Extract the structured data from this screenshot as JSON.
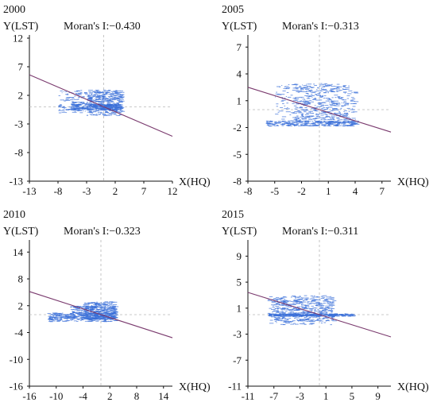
{
  "chart_data": [
    {
      "type": "scatter",
      "title": "2000",
      "ylabel": "Y(LST)",
      "xlabel": "X(HQ)",
      "moran_label": "Moran's I:",
      "moran_value": "−0.430",
      "xlim": [
        -13,
        12
      ],
      "ylim": [
        -13,
        12
      ],
      "xticks": [
        -13,
        -8,
        -3,
        2,
        7,
        12
      ],
      "yticks": [
        12,
        7,
        2,
        -3,
        -8,
        -13
      ],
      "reference_lines": {
        "x": 0,
        "y": 0
      },
      "regression": {
        "slope": -0.43,
        "intercept": 0,
        "color": "#7a3a6e"
      },
      "point_color": "#3a6fd8",
      "clusters": [
        {
          "x_range": [
            -8,
            3
          ],
          "y_range": [
            -1,
            3
          ]
        },
        {
          "x_range": [
            -3,
            3
          ],
          "y_range": [
            -1.5,
            3
          ]
        },
        {
          "x_range": [
            -6,
            3
          ],
          "y_range": [
            -0.5,
            0.5
          ]
        }
      ]
    },
    {
      "type": "scatter",
      "title": "2005",
      "ylabel": "Y(LST)",
      "xlabel": "X(HQ)",
      "moran_label": "Moran's I:",
      "moran_value": "−0.313",
      "xlim": [
        -8,
        8
      ],
      "ylim": [
        -8,
        8
      ],
      "xticks": [
        -8,
        -5,
        -2,
        1,
        4,
        7
      ],
      "yticks": [
        7,
        4,
        1,
        -2,
        -5,
        -8
      ],
      "reference_lines": {
        "x": 0,
        "y": 0
      },
      "regression": {
        "slope": -0.313,
        "intercept": 0,
        "color": "#7a3a6e"
      },
      "point_color": "#3a6fd8",
      "clusters": [
        {
          "x_range": [
            -5,
            3
          ],
          "y_range": [
            -1.5,
            3
          ]
        },
        {
          "x_range": [
            -3,
            4
          ],
          "y_range": [
            -1.5,
            2.7
          ]
        },
        {
          "x_range": [
            -6,
            4
          ],
          "y_range": [
            -1.8,
            -1.2
          ]
        }
      ]
    },
    {
      "type": "scatter",
      "title": "2010",
      "ylabel": "Y(LST)",
      "xlabel": "X(HQ)",
      "moran_label": "Moran's I:",
      "moran_value": "−0.323",
      "xlim": [
        -16,
        16
      ],
      "ylim": [
        -16,
        16
      ],
      "xticks": [
        -16,
        -10,
        -4,
        2,
        8,
        14
      ],
      "yticks": [
        14,
        8,
        2,
        -4,
        -10,
        -16
      ],
      "reference_lines": {
        "x": 0,
        "y": 0
      },
      "regression": {
        "slope": -0.323,
        "intercept": 0,
        "color": "#7a3a6e"
      },
      "point_color": "#3a6fd8",
      "clusters": [
        {
          "x_range": [
            -12,
            3
          ],
          "y_range": [
            -1.5,
            0.5
          ]
        },
        {
          "x_range": [
            -7,
            3
          ],
          "y_range": [
            -1,
            2
          ]
        },
        {
          "x_range": [
            -4,
            3
          ],
          "y_range": [
            -1,
            3
          ]
        }
      ]
    },
    {
      "type": "scatter",
      "title": "2015",
      "ylabel": "Y(LST)",
      "xlabel": "X(HQ)",
      "moran_label": "Moran's I:",
      "moran_value": "−0.311",
      "xlim": [
        -11,
        11
      ],
      "ylim": [
        -11,
        11
      ],
      "xticks": [
        -11,
        -7,
        -3,
        1,
        5,
        9
      ],
      "yticks": [
        9,
        5,
        1,
        -3,
        -7,
        -11
      ],
      "reference_lines": {
        "x": 0,
        "y": 0
      },
      "regression": {
        "slope": -0.311,
        "intercept": 0,
        "color": "#7a3a6e"
      },
      "point_color": "#3a6fd8",
      "clusters": [
        {
          "x_range": [
            -8,
            2
          ],
          "y_range": [
            -1.5,
            3
          ]
        },
        {
          "x_range": [
            -7,
            2
          ],
          "y_range": [
            -1,
            2.5
          ]
        },
        {
          "x_range": [
            -8,
            5
          ],
          "y_range": [
            -0.2,
            0.2
          ]
        }
      ]
    }
  ]
}
